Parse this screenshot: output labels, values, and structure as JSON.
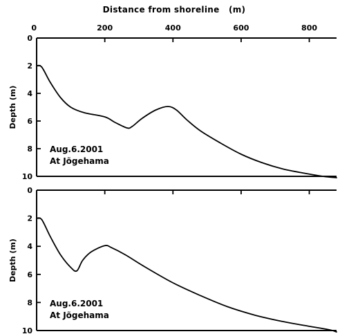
{
  "chart_data": {
    "title": "Distance from shoreline   (m)",
    "xlim": [
      0,
      880
    ],
    "x_ticks": [
      "0",
      "200",
      "400",
      "600",
      "800"
    ],
    "x_tick_values": [
      0,
      200,
      400,
      600,
      800
    ],
    "panels": [
      {
        "type": "line",
        "ylabel": "Depth (m)",
        "ylim": [
          0,
          10
        ],
        "y_inverted": true,
        "y_ticks": [
          "0",
          "2",
          "4",
          "6",
          "8",
          "10"
        ],
        "y_tick_values": [
          0,
          2,
          4,
          6,
          8,
          10
        ],
        "annotation": [
          "Aug.6.2001",
          "At Jõgehama"
        ],
        "series": [
          {
            "x": [
              0,
              15,
              40,
              70,
              100,
              140,
              200,
              230,
              265,
              280,
              310,
              350,
              385,
              410,
              440,
              480,
              540,
              600,
              660,
              720,
              780,
              840,
              880
            ],
            "y": [
              2.0,
              2.1,
              3.2,
              4.3,
              5.0,
              5.4,
              5.7,
              6.1,
              6.5,
              6.4,
              5.8,
              5.2,
              4.95,
              5.2,
              5.9,
              6.7,
              7.6,
              8.4,
              9.0,
              9.45,
              9.75,
              10.0,
              10.1
            ]
          }
        ]
      },
      {
        "type": "line",
        "ylabel": "Depth (m)",
        "ylim": [
          0,
          10
        ],
        "y_inverted": true,
        "y_ticks": [
          "0",
          "2",
          "4",
          "6",
          "8",
          "10"
        ],
        "y_tick_values": [
          0,
          2,
          4,
          6,
          8,
          10
        ],
        "annotation": [
          "Aug.6.2001",
          "At Jõgehama"
        ],
        "series": [
          {
            "x": [
              0,
              15,
              40,
              70,
              100,
              118,
              135,
              160,
              200,
              220,
              260,
              320,
              400,
              480,
              560,
              640,
              720,
              800,
              860,
              880
            ],
            "y": [
              2.0,
              2.1,
              3.3,
              4.6,
              5.5,
              5.75,
              5.0,
              4.4,
              3.95,
              4.1,
              4.6,
              5.5,
              6.6,
              7.5,
              8.3,
              8.9,
              9.35,
              9.7,
              9.95,
              10.1
            ]
          }
        ]
      }
    ]
  }
}
